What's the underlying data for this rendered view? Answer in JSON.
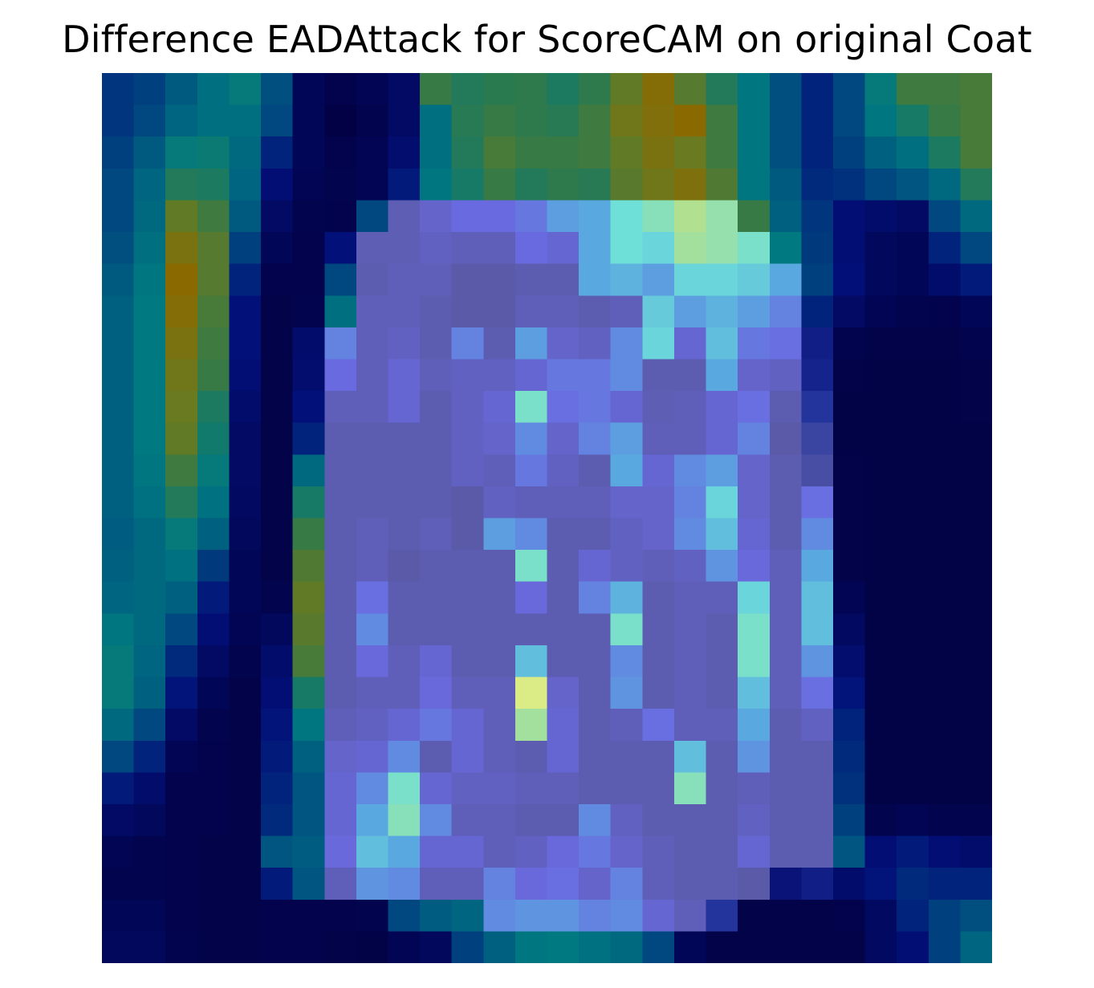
{
  "title": "Difference EADAttack for ScoreCAM on original Coat",
  "chart_data": {
    "type": "heatmap",
    "title": "Difference EADAttack for ScoreCAM on original Coat",
    "rows": 28,
    "cols": 28,
    "axes": "off",
    "grid": false,
    "colorscale": [
      [
        0.0,
        "#04003d"
      ],
      [
        0.15,
        "#050a6e"
      ],
      [
        0.28,
        "#1a2f9a"
      ],
      [
        0.42,
        "#5a5aa8"
      ],
      [
        0.55,
        "#6a6ae0"
      ],
      [
        0.68,
        "#5aa8e0"
      ],
      [
        0.78,
        "#6ee0d8"
      ],
      [
        0.88,
        "#b0e090"
      ],
      [
        1.0,
        "#f0f080"
      ]
    ],
    "background_colorscale": [
      [
        0.0,
        "#020040"
      ],
      [
        0.25,
        "#02107a"
      ],
      [
        0.45,
        "#005a80"
      ],
      [
        0.6,
        "#007a80"
      ],
      [
        0.75,
        "#2a7a50"
      ],
      [
        0.9,
        "#6a7a20"
      ],
      [
        1.0,
        "#8a6a00"
      ]
    ],
    "object_mask_description_rows": [
      "0000000000000000000000000000",
      "0000000000000000000000000000",
      "0000000000000000000000000000",
      "0000000000000000000000000000",
      "0000000001111111111100000000",
      "0000000011111111111110000000",
      "0000000011111111111111000000",
      "0000000011111111111111000000",
      "0000000111111111111111100000",
      "0000000111111111111111100000",
      "0000000111111111111111100000",
      "0000000111111111111111100000",
      "0000000111111111111111100000",
      "0000000111111111111111100000",
      "0000000111111111111111100000",
      "0000000111111111111111100000",
      "0000000111111111111111100000",
      "0000000111111111111111100000",
      "0000000111111111111111100000",
      "0000000111111111111111100000",
      "0000000111111111111111100000",
      "0000000111111111111111100000",
      "0000000111111111111111100000",
      "0000000111111111111111100000",
      "0000000111111111111111100000",
      "0000000111111111111111100000",
      "0000000000001111111100000000",
      "0000000000000000000000000000"
    ],
    "values": [
      [
        0.35,
        0.38,
        0.45,
        0.55,
        0.62,
        0.42,
        0.1,
        0.05,
        0.08,
        0.15,
        0.78,
        0.72,
        0.75,
        0.76,
        0.7,
        0.76,
        0.88,
        0.98,
        0.85,
        0.72,
        0.58,
        0.42,
        0.3,
        0.4,
        0.62,
        0.8,
        0.8,
        0.82
      ],
      [
        0.35,
        0.4,
        0.5,
        0.55,
        0.55,
        0.4,
        0.1,
        0.02,
        0.06,
        0.15,
        0.55,
        0.74,
        0.78,
        0.76,
        0.74,
        0.8,
        0.92,
        0.97,
        1.0,
        0.8,
        0.58,
        0.42,
        0.3,
        0.4,
        0.58,
        0.68,
        0.78,
        0.82
      ],
      [
        0.38,
        0.45,
        0.62,
        0.64,
        0.52,
        0.3,
        0.1,
        0.05,
        0.08,
        0.2,
        0.55,
        0.72,
        0.82,
        0.78,
        0.78,
        0.8,
        0.88,
        0.95,
        0.9,
        0.8,
        0.58,
        0.42,
        0.3,
        0.38,
        0.48,
        0.55,
        0.7,
        0.82
      ],
      [
        0.4,
        0.5,
        0.72,
        0.7,
        0.5,
        0.22,
        0.08,
        0.06,
        0.08,
        0.28,
        0.58,
        0.68,
        0.78,
        0.72,
        0.76,
        0.74,
        0.86,
        0.92,
        0.96,
        0.84,
        0.58,
        0.45,
        0.32,
        0.34,
        0.4,
        0.44,
        0.52,
        0.72
      ],
      [
        0.4,
        0.52,
        0.88,
        0.8,
        0.45,
        0.15,
        0.06,
        0.05,
        0.4,
        0.45,
        0.5,
        0.55,
        0.55,
        0.58,
        0.66,
        0.68,
        0.78,
        0.82,
        0.88,
        0.84,
        0.78,
        0.48,
        0.35,
        0.22,
        0.18,
        0.15,
        0.4,
        0.52
      ],
      [
        0.42,
        0.55,
        0.95,
        0.85,
        0.38,
        0.1,
        0.05,
        0.25,
        0.45,
        0.45,
        0.48,
        0.46,
        0.46,
        0.55,
        0.52,
        0.68,
        0.78,
        0.76,
        0.86,
        0.84,
        0.8,
        0.6,
        0.36,
        0.22,
        0.12,
        0.1,
        0.3,
        0.4
      ],
      [
        0.45,
        0.58,
        1.0,
        0.85,
        0.3,
        0.05,
        0.05,
        0.4,
        0.44,
        0.46,
        0.46,
        0.42,
        0.42,
        0.44,
        0.44,
        0.68,
        0.7,
        0.66,
        0.76,
        0.76,
        0.74,
        0.68,
        0.38,
        0.24,
        0.12,
        0.1,
        0.18,
        0.28
      ],
      [
        0.48,
        0.6,
        0.98,
        0.82,
        0.25,
        0.04,
        0.06,
        0.55,
        0.46,
        0.46,
        0.44,
        0.42,
        0.42,
        0.46,
        0.46,
        0.44,
        0.46,
        0.74,
        0.66,
        0.7,
        0.66,
        0.6,
        0.3,
        0.15,
        0.08,
        0.06,
        0.05,
        0.1
      ],
      [
        0.48,
        0.6,
        0.95,
        0.8,
        0.25,
        0.04,
        0.18,
        0.6,
        0.46,
        0.48,
        0.44,
        0.6,
        0.44,
        0.66,
        0.5,
        0.48,
        0.62,
        0.76,
        0.52,
        0.72,
        0.58,
        0.56,
        0.22,
        0.06,
        0.04,
        0.04,
        0.04,
        0.06
      ],
      [
        0.48,
        0.6,
        0.92,
        0.78,
        0.22,
        0.04,
        0.2,
        0.55,
        0.46,
        0.52,
        0.46,
        0.48,
        0.48,
        0.52,
        0.58,
        0.58,
        0.62,
        0.44,
        0.44,
        0.68,
        0.5,
        0.48,
        0.24,
        0.04,
        0.03,
        0.03,
        0.03,
        0.04
      ],
      [
        0.48,
        0.6,
        0.9,
        0.7,
        0.18,
        0.04,
        0.25,
        0.46,
        0.46,
        0.52,
        0.44,
        0.48,
        0.52,
        0.8,
        0.56,
        0.58,
        0.52,
        0.45,
        0.46,
        0.52,
        0.56,
        0.44,
        0.3,
        0.03,
        0.03,
        0.03,
        0.03,
        0.04
      ],
      [
        0.48,
        0.6,
        0.88,
        0.66,
        0.15,
        0.04,
        0.3,
        0.44,
        0.44,
        0.44,
        0.44,
        0.48,
        0.5,
        0.62,
        0.5,
        0.6,
        0.66,
        0.46,
        0.46,
        0.52,
        0.6,
        0.42,
        0.35,
        0.03,
        0.03,
        0.03,
        0.03,
        0.03
      ],
      [
        0.48,
        0.58,
        0.8,
        0.62,
        0.15,
        0.04,
        0.52,
        0.44,
        0.44,
        0.44,
        0.44,
        0.48,
        0.46,
        0.58,
        0.48,
        0.44,
        0.68,
        0.52,
        0.62,
        0.66,
        0.5,
        0.44,
        0.38,
        0.04,
        0.03,
        0.03,
        0.03,
        0.03
      ],
      [
        0.48,
        0.56,
        0.72,
        0.56,
        0.14,
        0.04,
        0.68,
        0.44,
        0.44,
        0.44,
        0.44,
        0.42,
        0.48,
        0.46,
        0.46,
        0.46,
        0.5,
        0.5,
        0.6,
        0.76,
        0.5,
        0.44,
        0.56,
        0.04,
        0.03,
        0.03,
        0.03,
        0.03
      ],
      [
        0.46,
        0.52,
        0.62,
        0.48,
        0.12,
        0.04,
        0.78,
        0.44,
        0.46,
        0.44,
        0.46,
        0.42,
        0.66,
        0.62,
        0.44,
        0.44,
        0.48,
        0.5,
        0.62,
        0.72,
        0.52,
        0.44,
        0.62,
        0.04,
        0.03,
        0.03,
        0.03,
        0.03
      ],
      [
        0.48,
        0.52,
        0.56,
        0.36,
        0.1,
        0.04,
        0.84,
        0.44,
        0.46,
        0.42,
        0.44,
        0.44,
        0.44,
        0.8,
        0.44,
        0.52,
        0.48,
        0.46,
        0.48,
        0.64,
        0.54,
        0.46,
        0.68,
        0.04,
        0.03,
        0.03,
        0.03,
        0.03
      ],
      [
        0.5,
        0.52,
        0.48,
        0.28,
        0.1,
        0.06,
        0.88,
        0.44,
        0.56,
        0.44,
        0.44,
        0.44,
        0.44,
        0.54,
        0.44,
        0.6,
        0.7,
        0.44,
        0.46,
        0.46,
        0.76,
        0.46,
        0.72,
        0.08,
        0.03,
        0.03,
        0.03,
        0.03
      ],
      [
        0.58,
        0.52,
        0.4,
        0.22,
        0.08,
        0.12,
        0.86,
        0.44,
        0.62,
        0.44,
        0.44,
        0.44,
        0.44,
        0.44,
        0.44,
        0.44,
        0.8,
        0.44,
        0.46,
        0.44,
        0.8,
        0.46,
        0.72,
        0.14,
        0.03,
        0.03,
        0.03,
        0.03
      ],
      [
        0.62,
        0.5,
        0.32,
        0.15,
        0.06,
        0.18,
        0.82,
        0.44,
        0.54,
        0.46,
        0.52,
        0.44,
        0.44,
        0.72,
        0.44,
        0.44,
        0.62,
        0.44,
        0.46,
        0.44,
        0.8,
        0.46,
        0.64,
        0.2,
        0.03,
        0.03,
        0.03,
        0.03
      ],
      [
        0.62,
        0.48,
        0.26,
        0.1,
        0.04,
        0.22,
        0.68,
        0.44,
        0.46,
        0.46,
        0.54,
        0.46,
        0.46,
        0.96,
        0.5,
        0.44,
        0.64,
        0.44,
        0.46,
        0.44,
        0.72,
        0.46,
        0.56,
        0.26,
        0.03,
        0.03,
        0.03,
        0.03
      ],
      [
        0.52,
        0.4,
        0.16,
        0.06,
        0.04,
        0.26,
        0.58,
        0.46,
        0.48,
        0.52,
        0.58,
        0.52,
        0.46,
        0.86,
        0.52,
        0.44,
        0.46,
        0.56,
        0.46,
        0.46,
        0.68,
        0.44,
        0.48,
        0.3,
        0.03,
        0.03,
        0.03,
        0.03
      ],
      [
        0.4,
        0.3,
        0.08,
        0.05,
        0.04,
        0.28,
        0.48,
        0.5,
        0.52,
        0.62,
        0.44,
        0.52,
        0.46,
        0.44,
        0.52,
        0.44,
        0.44,
        0.44,
        0.72,
        0.44,
        0.64,
        0.44,
        0.44,
        0.32,
        0.03,
        0.03,
        0.03,
        0.03
      ],
      [
        0.28,
        0.18,
        0.05,
        0.05,
        0.04,
        0.3,
        0.44,
        0.52,
        0.62,
        0.8,
        0.52,
        0.48,
        0.48,
        0.46,
        0.46,
        0.44,
        0.44,
        0.44,
        0.82,
        0.44,
        0.46,
        0.44,
        0.44,
        0.34,
        0.03,
        0.03,
        0.03,
        0.03
      ],
      [
        0.16,
        0.12,
        0.05,
        0.05,
        0.04,
        0.32,
        0.44,
        0.52,
        0.68,
        0.82,
        0.62,
        0.46,
        0.46,
        0.44,
        0.44,
        0.62,
        0.48,
        0.44,
        0.44,
        0.44,
        0.48,
        0.44,
        0.44,
        0.38,
        0.06,
        0.08,
        0.06,
        0.06
      ],
      [
        0.08,
        0.06,
        0.05,
        0.04,
        0.04,
        0.44,
        0.46,
        0.54,
        0.72,
        0.68,
        0.52,
        0.52,
        0.46,
        0.48,
        0.54,
        0.58,
        0.5,
        0.46,
        0.44,
        0.44,
        0.52,
        0.44,
        0.44,
        0.44,
        0.22,
        0.28,
        0.22,
        0.18
      ],
      [
        0.06,
        0.06,
        0.05,
        0.04,
        0.04,
        0.28,
        0.44,
        0.46,
        0.64,
        0.62,
        0.46,
        0.46,
        0.6,
        0.54,
        0.56,
        0.5,
        0.6,
        0.46,
        0.44,
        0.44,
        0.42,
        0.18,
        0.22,
        0.18,
        0.26,
        0.32,
        0.3,
        0.3
      ],
      [
        0.1,
        0.1,
        0.05,
        0.04,
        0.04,
        0.05,
        0.05,
        0.05,
        0.06,
        0.4,
        0.46,
        0.5,
        0.62,
        0.64,
        0.64,
        0.6,
        0.62,
        0.52,
        0.46,
        0.3,
        0.04,
        0.04,
        0.04,
        0.05,
        0.14,
        0.3,
        0.38,
        0.42
      ],
      [
        0.12,
        0.12,
        0.06,
        0.04,
        0.04,
        0.05,
        0.05,
        0.04,
        0.03,
        0.08,
        0.12,
        0.38,
        0.48,
        0.58,
        0.6,
        0.56,
        0.52,
        0.4,
        0.1,
        0.04,
        0.04,
        0.04,
        0.04,
        0.04,
        0.14,
        0.22,
        0.38,
        0.5
      ]
    ]
  }
}
